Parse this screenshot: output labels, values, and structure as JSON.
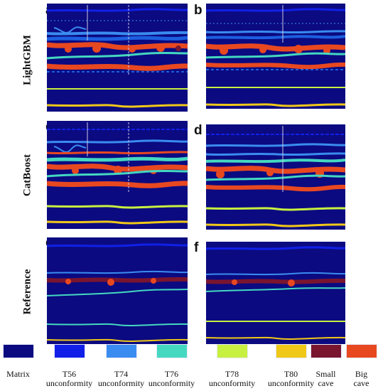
{
  "panel_letters": [
    "a",
    "b",
    "c",
    "d",
    "e",
    "f"
  ],
  "row_labels": [
    "LightGBM",
    "CatBoost",
    "Reference"
  ],
  "legend": [
    {
      "label": "Matrix",
      "color": "#0b0a80"
    },
    {
      "label": "T56\nunconformity",
      "color": "#1020e8"
    },
    {
      "label": "T74\nunconformity",
      "color": "#3a8cf0"
    },
    {
      "label": "T76\nunconformity",
      "color": "#44d8c0"
    },
    {
      "label": "T78\nunconformity",
      "color": "#c8f040"
    },
    {
      "label": "T80\nunconformity",
      "color": "#f0c818"
    },
    {
      "label": "Small\ncave",
      "color": "#7a1530"
    },
    {
      "label": "Big\ncave",
      "color": "#e84820"
    }
  ]
}
